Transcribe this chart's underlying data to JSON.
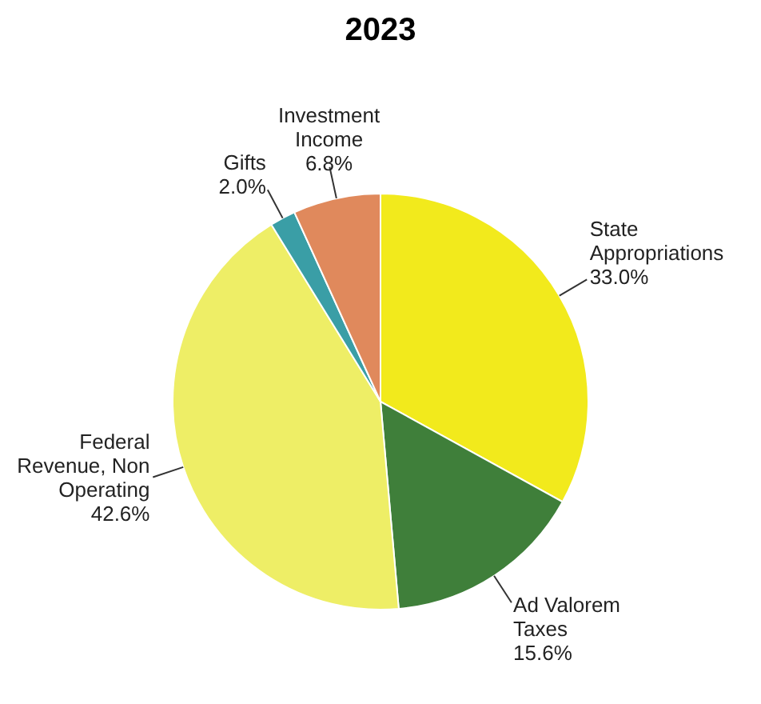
{
  "chart_data": {
    "type": "pie",
    "title": "2023",
    "categories": [
      "State Appropriations",
      "Ad Valorem Taxes",
      "Federal Revenue, Non Operating",
      "Gifts",
      "Investment Income"
    ],
    "values": [
      33.0,
      15.6,
      42.6,
      2.0,
      6.8
    ],
    "value_labels": [
      "33.0%",
      "15.6%",
      "42.6%",
      "2.0%",
      "6.8%"
    ],
    "colors": [
      "#f2ea1c",
      "#3f7f3a",
      "#eeee66",
      "#3a9ea6",
      "#e0895c"
    ]
  }
}
